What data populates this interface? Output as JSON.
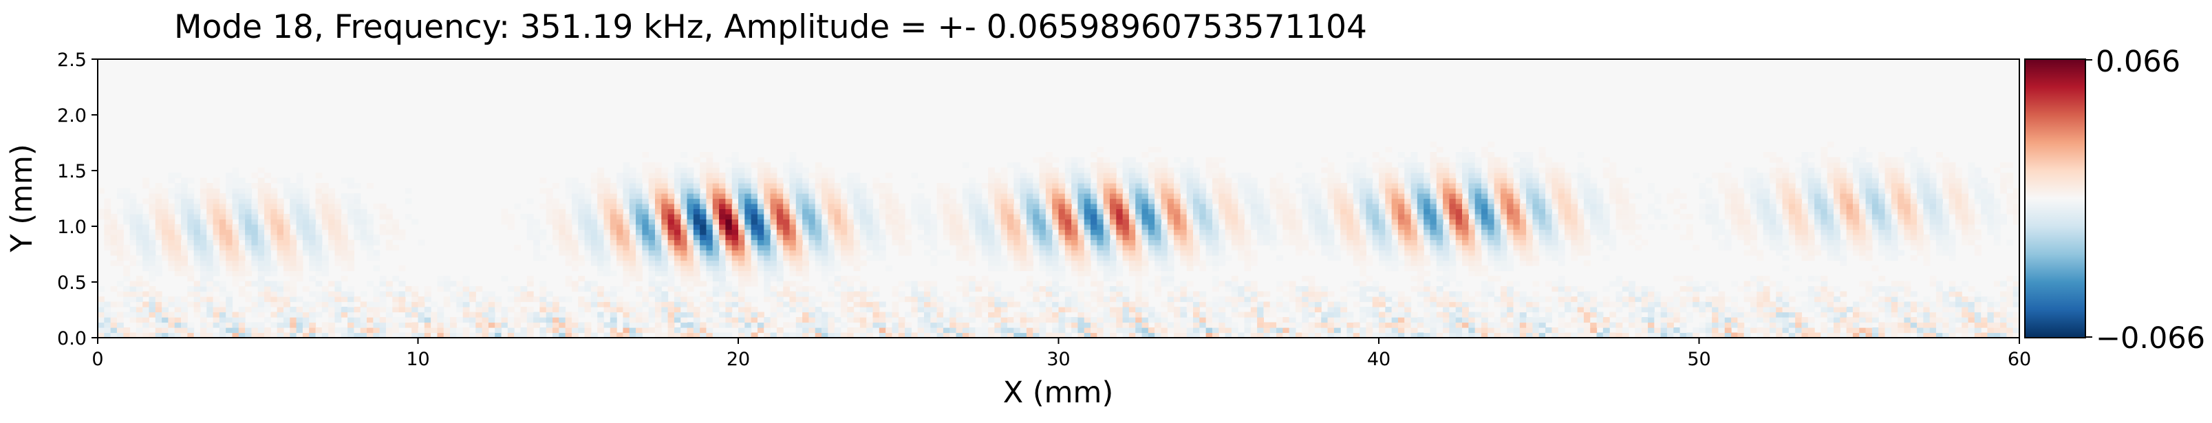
{
  "chart_data": {
    "type": "heatmap",
    "title": "Mode 18, Frequency: 351.19 kHz, Amplitude = +- 0.06598960753571104",
    "xlabel": "X (mm)",
    "ylabel": "Y (mm)",
    "xlim": [
      0,
      60
    ],
    "ylim": [
      0,
      2.5
    ],
    "x_ticks": [
      "0",
      "10",
      "20",
      "30",
      "40",
      "50",
      "60"
    ],
    "y_ticks": [
      "0.0",
      "0.5",
      "1.0",
      "1.5",
      "2.0",
      "2.5"
    ],
    "colormap": "RdBu_r",
    "colorbar": {
      "vmin": -0.066,
      "vmax": 0.066,
      "tick_labels": [
        "0.066",
        "−0.066"
      ],
      "colors": [
        "#053061",
        "#2166ac",
        "#4393c3",
        "#92c5de",
        "#d1e5f0",
        "#f7f7f7",
        "#fddbc7",
        "#f4a582",
        "#d6604d",
        "#b2182b",
        "#67001f"
      ]
    },
    "field_description": {
      "wave_band_y_center": 0.95,
      "wave_band_y_halfwidth": 0.3,
      "wavelength_x": 1.75,
      "packets": [
        {
          "x_center": 4.5,
          "amplitude": 0.02
        },
        {
          "x_center": 19.5,
          "amplitude": 0.066
        },
        {
          "x_center": 31.5,
          "amplitude": 0.05
        },
        {
          "x_center": 42.5,
          "amplitude": 0.045
        },
        {
          "x_center": 55.0,
          "amplitude": 0.022
        }
      ],
      "noise_band_y_max": 0.6
    }
  }
}
